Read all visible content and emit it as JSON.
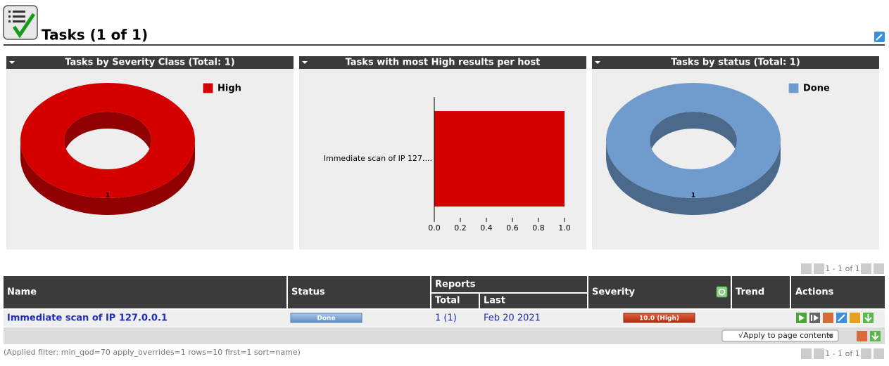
{
  "header": {
    "title": "Tasks (1 of 1)"
  },
  "chart_data": [
    {
      "type": "pie",
      "title": "Tasks by Severity Class (Total: 1)",
      "categories": [
        "High"
      ],
      "values": [
        1
      ],
      "colors": [
        "#d40000"
      ],
      "legend": "top-right"
    },
    {
      "type": "bar",
      "title": "Tasks with most High results per host",
      "categories": [
        "Immediate scan of IP 127...."
      ],
      "values": [
        1
      ],
      "color": "#d40000",
      "orientation": "horizontal",
      "xlim": [
        0,
        1
      ],
      "xticks": [
        {
          "value": 0,
          "label": "0.0"
        },
        {
          "value": 0.2,
          "label": "0.2"
        },
        {
          "value": 0.4,
          "label": "0.4"
        },
        {
          "value": 0.6,
          "label": "0.6"
        },
        {
          "value": 0.8,
          "label": "0.8"
        },
        {
          "value": 1,
          "label": "1.0"
        }
      ]
    },
    {
      "type": "pie",
      "title": "Tasks by status (Total: 1)",
      "categories": [
        "Done"
      ],
      "values": [
        1
      ],
      "colors": [
        "#6f9ccc"
      ],
      "legend": "top-right"
    }
  ],
  "pagination": {
    "top": "1 - 1 of 1",
    "bottom": "1 - 1 of 1"
  },
  "table": {
    "columns": [
      "Name",
      "Status",
      "Reports",
      "Severity",
      "Trend",
      "Actions"
    ],
    "subcolumns": [
      "Total",
      "Last"
    ],
    "rows": [
      [
        "Immediate scan of IP 127.0.0.1",
        "Done",
        "1 (1)",
        "Feb 20 2021",
        "10.0 (High)"
      ]
    ]
  },
  "apply_select": "√Apply to page contents",
  "filter": "(Applied filter: min_qod=70 apply_overrides=1 rows=10 first=1 sort=name)"
}
